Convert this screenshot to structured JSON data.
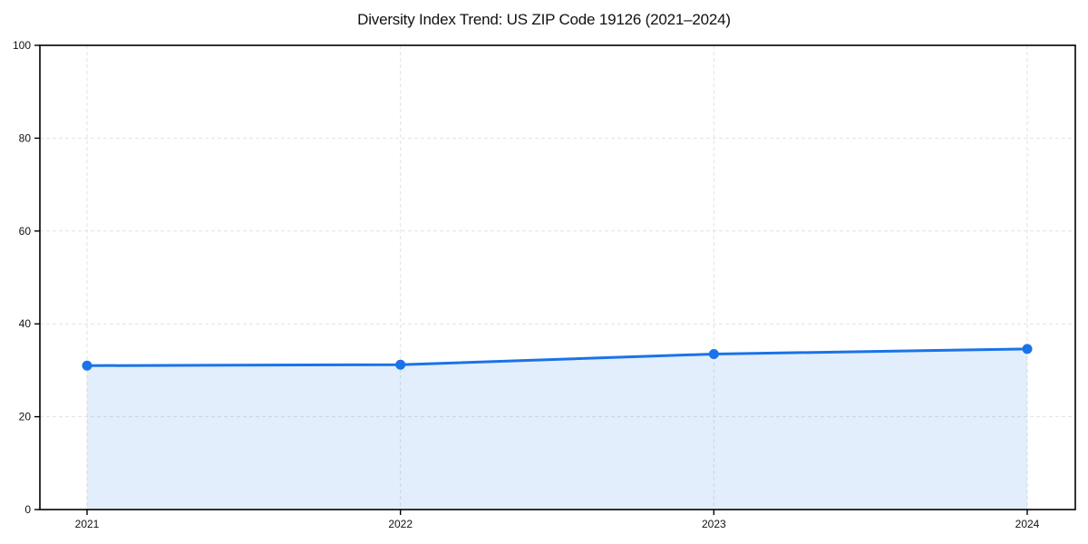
{
  "chart_data": {
    "type": "line",
    "title": "Diversity Index Trend: US ZIP Code 19126 (2021–2024)",
    "x": [
      "2021",
      "2022",
      "2023",
      "2024"
    ],
    "series": [
      {
        "name": "Diversity Index",
        "values": [
          31.0,
          31.2,
          33.5,
          34.6
        ]
      }
    ],
    "xlabel": "",
    "ylabel": "",
    "ylim": [
      0,
      100
    ],
    "yticks": [
      0,
      20,
      40,
      60,
      80,
      100
    ],
    "grid": true,
    "legend_position": "none",
    "area_fill": true,
    "marker": "circle",
    "colors": {
      "line": "#1a73e8",
      "marker": "#1a73e8",
      "area_fill": "rgba(26,115,232,0.12)",
      "grid": "#e2e2e2",
      "axis": "#000000",
      "tick_text": "#111111",
      "title_text": "#111111",
      "background": "#ffffff"
    }
  }
}
